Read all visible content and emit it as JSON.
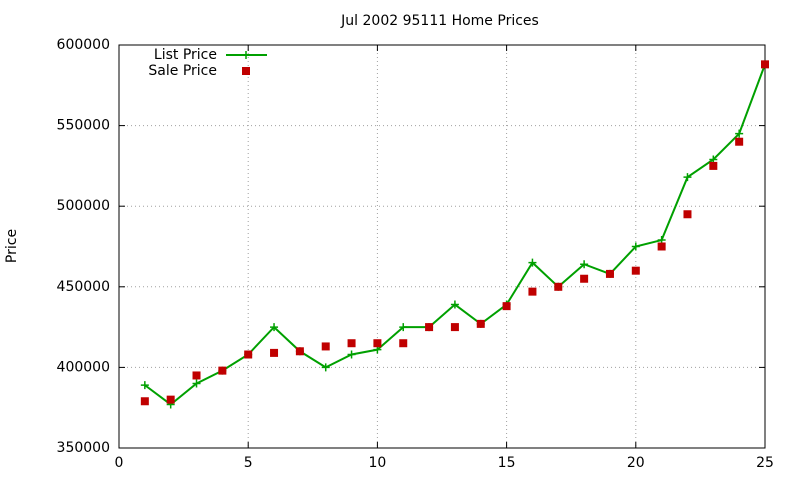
{
  "chart_data": {
    "type": "line",
    "title": "Jul 2002 95111 Home Prices",
    "y_label": "Price",
    "x": [
      1,
      2,
      3,
      4,
      5,
      6,
      7,
      8,
      9,
      10,
      11,
      12,
      13,
      14,
      15,
      16,
      17,
      18,
      19,
      20,
      21,
      22,
      23,
      24,
      25
    ],
    "series": [
      {
        "name": "List Price",
        "color": "#00a000",
        "style": "linespoints",
        "values": [
          389000,
          377000,
          390000,
          398000,
          408000,
          425000,
          410000,
          400000,
          408000,
          411000,
          425000,
          425000,
          439000,
          427000,
          439000,
          465000,
          450000,
          464000,
          458000,
          475000,
          479000,
          518000,
          529000,
          545000,
          588000
        ]
      },
      {
        "name": "Sale Price",
        "color": "#c00000",
        "style": "points",
        "values": [
          379000,
          380000,
          395000,
          398000,
          408000,
          409000,
          410000,
          413000,
          415000,
          415000,
          415000,
          425000,
          425000,
          427000,
          438000,
          447000,
          450000,
          455000,
          458000,
          460000,
          475000,
          495000,
          525000,
          540000,
          588000
        ]
      }
    ],
    "xlim": [
      0,
      25
    ],
    "xticks": [
      0,
      5,
      10,
      15,
      20,
      25
    ],
    "ylim": [
      350000,
      600000
    ],
    "yticks": [
      350000,
      400000,
      450000,
      500000,
      550000,
      600000
    ],
    "grid": true,
    "legend": "top-left"
  }
}
